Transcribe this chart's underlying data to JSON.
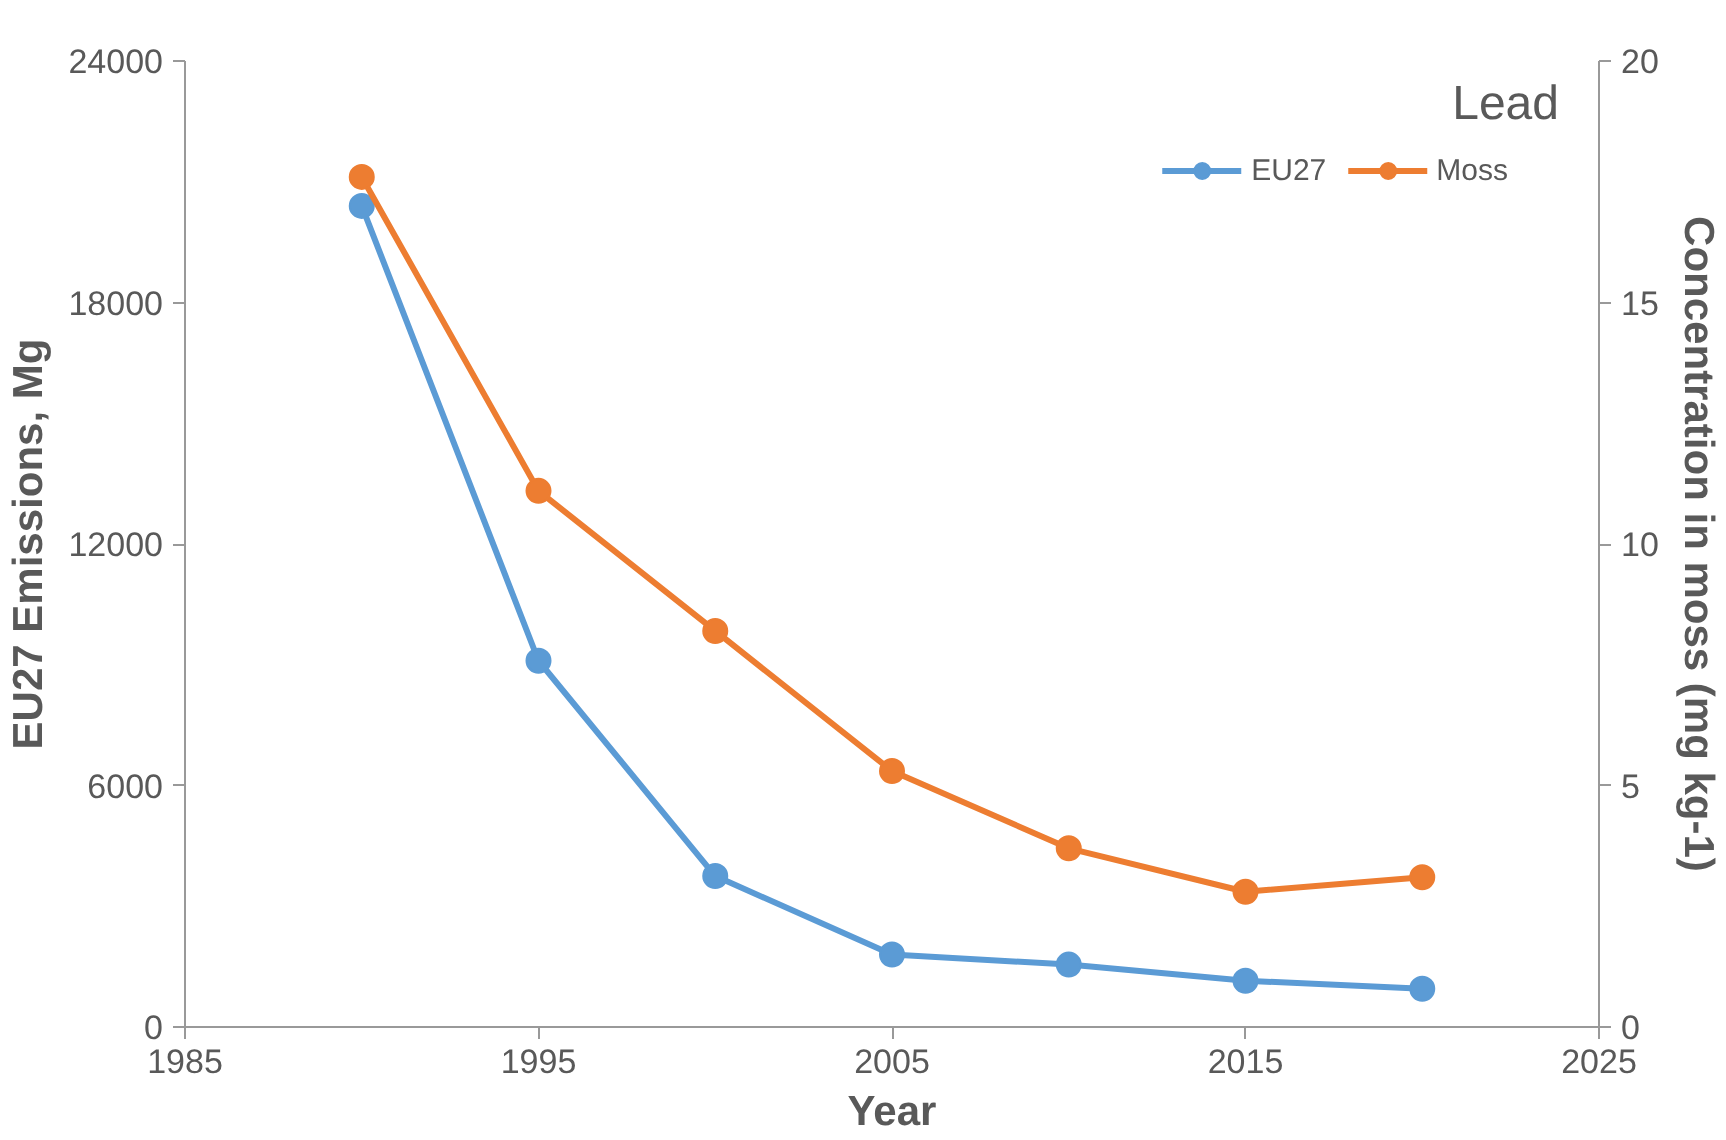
{
  "chart_data": {
    "type": "line",
    "xlabel": "Year",
    "ylabel": "EU27 Emissions, Mg",
    "y2label": "Concentration in moss (mg kg-1)",
    "annotations": [
      "Lead"
    ],
    "x": [
      1990,
      1995,
      2000,
      2005,
      2010,
      2015,
      2020
    ],
    "series": [
      {
        "name": "EU27",
        "color": "#5b9bd5",
        "values": [
          20400,
          9100,
          3750,
          1800,
          1550,
          1150,
          950
        ]
      },
      {
        "name": "Moss",
        "color": "#ed7d31",
        "axis": "y2",
        "values": [
          17.6,
          11.1,
          8.2,
          5.3,
          3.7,
          2.8,
          3.1
        ]
      }
    ],
    "xlim": [
      1985,
      2025
    ],
    "xticks": [
      1985,
      1995,
      2005,
      2015,
      2025
    ],
    "ylim": [
      0,
      24000
    ],
    "yticks": [
      0,
      6000,
      12000,
      18000,
      24000
    ],
    "y2lim": [
      0,
      20
    ],
    "y2ticks": [
      0,
      5,
      10,
      15,
      20
    ],
    "grid": false,
    "legend": "top right",
    "marker": "circle",
    "line_style": "solid"
  }
}
